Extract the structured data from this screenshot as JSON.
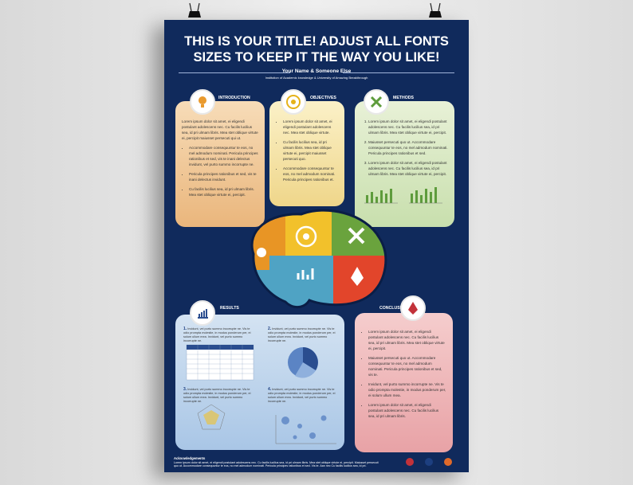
{
  "header": {
    "title_lines": [
      "THIS IS YOUR TITLE! ADJUST ALL FONTS",
      "SIZES TO KEEP IT THE WAY YOU LIKE!"
    ],
    "authors": "Your Name & Someone Else",
    "institution": "Institution of Academic knowledge & University of Amazing Breakthrough"
  },
  "introduction": {
    "heading": "INTRODUCTION",
    "paragraph": "Lorem ipsum dolor sit amet, ei eligendi postulant adolescens nec. Cu facilis lucilius sea, id pri ulmam libris. Mea stet oblique virtute ei, percipit maiusset persecuti qui ut.",
    "bullets": [
      "Accommodare consequuntur te eos, no mel admodum nominati. Pericula principes rationibus et sed, vis te inani delectus invidunt, vel purto summo incorrupte ne.",
      "Pericula principes rationibus et sed, vis te inani delectus invidunt.",
      "Cu facilis lucilius sea, id pri ulmam libris. Mea stet oblique virtute ei, percipit."
    ]
  },
  "objectives": {
    "heading": "OBJECTIVES",
    "bullets": [
      "Lorem ipsum dolor sit amet, ei eligendi postulant adolescens nec. Mea stet oblique virtute.",
      "Cu facilis lucilius sea, id pri ulmam libris. Mea stet oblique virtute ei, percipit maiusset persecuti quo.",
      "Accommodare consequuntur te eos, no mel admodum nominati. Pericula principes rationibus et."
    ]
  },
  "methods": {
    "heading": "METHODS",
    "items": [
      "Lorem ipsum dolor sit amet, ei eligendi postulant adolescens nec. Cu facilis lucilius sea, id pri ulmam libris. Mea stet oblique virtute ei, percipit.",
      "Maiusset persecuti quo ut. Accommodare consequuntur te eos, no mel admodum nominati. Pericula principes rationibus et sed.",
      "Lorem ipsum dolor sit amet, ei eligendi postulant adolescens nec. Cu facilis lucilius sea, id pri ulmam libris. Mea stet oblique virtute ei, percipit."
    ]
  },
  "results": {
    "heading": "RESULTS",
    "items": [
      {
        "number": "1.",
        "text": "Invidunt, vel purto summo incorrupte ne. Vis te odio prompta molestie, in modus ponderum per, ei solum ullum mea. Invidunt, vel purto summo incorrupte ne."
      },
      {
        "number": "2.",
        "text": "Invidunt, vel purto summo incorrupte ne. Vis te odio prompta molestie, in modus ponderum per, ei solum ullum mea. Invidunt, vel purto summo incorrupte ne."
      },
      {
        "number": "3.",
        "text": "Invidunt, vel purto summo incorrupte ne. Vis te odio prompta molestie, in modus ponderum per, ei solum ullum mea. Invidunt, vel purto summo incorrupte ne."
      },
      {
        "number": "4.",
        "text": "Invidunt, vel purto summo incorrupte ne. Vis te odio prompta molestie, in modus ponderum per, ei solum ullum mea. Invidunt, vel purto summo incorrupte ne."
      }
    ]
  },
  "conclusion": {
    "heading": "CONCLUSION",
    "paragraphs": [
      "Lorem ipsum dolor sit amet, ei eligendi postulant adolescens nec. Cu facilis lucilius sea, id pri ulmam libris. Mea stet oblique virtute ei, percipit.",
      "Maiusset persecuti quo ut. Accommodare consequuntur te eos, no mel admodum nominati. Pericula principes rationibus et sed, vis te.",
      "Invidunt, vel purto summo incorrupte ne. Vis te odio prompta molestie, in modus ponderum per, ei solum ullum mea.",
      "Lorem ipsum dolor sit amet, ei eligendi postulant adolescens nec. Cu facilis lucilius sea, id pri ulmam libris."
    ]
  },
  "footer": {
    "heading": "Acknowledgements",
    "text": "Lorem ipsum dolor sit amet, ei eligendi postulant adolescens nec. Cu facilis lucilius sea, id pri ulmam libris. Mea stet oblique virtute ei, percipit. Maiusset persecuti quo ut. Accommodare consequuntur te eos, no mel admodum nominati. Pericula principes rationibus et sed. Vis te. Aan nec Cu facilis lucilius sea, id pri."
  }
}
